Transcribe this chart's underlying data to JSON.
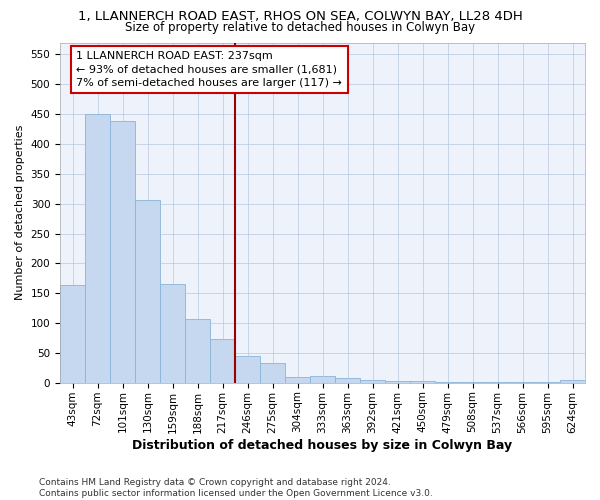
{
  "title": "1, LLANNERCH ROAD EAST, RHOS ON SEA, COLWYN BAY, LL28 4DH",
  "subtitle": "Size of property relative to detached houses in Colwyn Bay",
  "xlabel": "Distribution of detached houses by size in Colwyn Bay",
  "ylabel": "Number of detached properties",
  "categories": [
    "43sqm",
    "72sqm",
    "101sqm",
    "130sqm",
    "159sqm",
    "188sqm",
    "217sqm",
    "246sqm",
    "275sqm",
    "304sqm",
    "333sqm",
    "363sqm",
    "392sqm",
    "421sqm",
    "450sqm",
    "479sqm",
    "508sqm",
    "537sqm",
    "566sqm",
    "595sqm",
    "624sqm"
  ],
  "values": [
    163,
    450,
    438,
    307,
    165,
    107,
    73,
    45,
    33,
    10,
    12,
    8,
    5,
    3,
    3,
    2,
    2,
    1,
    1,
    1,
    4
  ],
  "bar_color": "#c5d8f0",
  "bar_edge_color": "#8ab4d8",
  "vline_x_index": 7,
  "vline_color": "#990000",
  "annotation_text": "1 LLANNERCH ROAD EAST: 237sqm\n← 93% of detached houses are smaller (1,681)\n7% of semi-detached houses are larger (117) →",
  "annotation_box_facecolor": "#ffffff",
  "annotation_box_edgecolor": "#cc0000",
  "ylim": [
    0,
    570
  ],
  "yticks": [
    0,
    50,
    100,
    150,
    200,
    250,
    300,
    350,
    400,
    450,
    500,
    550
  ],
  "footer": "Contains HM Land Registry data © Crown copyright and database right 2024.\nContains public sector information licensed under the Open Government Licence v3.0.",
  "bg_color": "#eef2fb",
  "title_fontsize": 9.5,
  "subtitle_fontsize": 8.5,
  "xlabel_fontsize": 9,
  "ylabel_fontsize": 8,
  "tick_fontsize": 7.5,
  "annotation_fontsize": 8,
  "footer_fontsize": 6.5
}
